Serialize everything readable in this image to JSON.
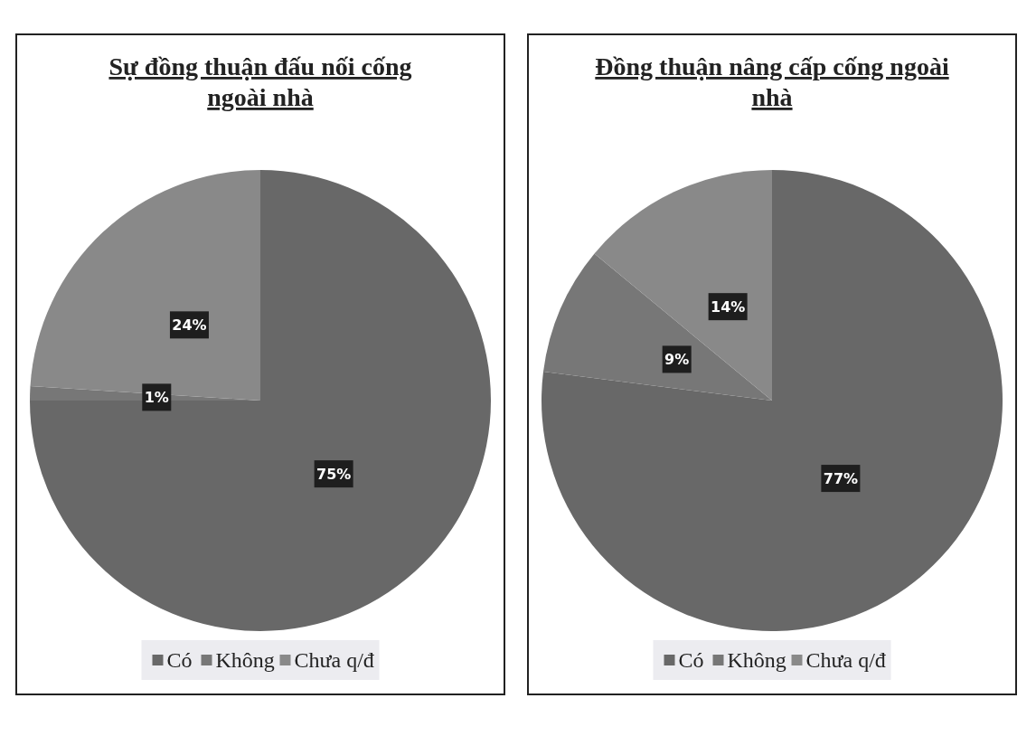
{
  "chart_data": [
    {
      "type": "pie",
      "title": "Sự đồng thuận đấu nối cống ngoài nhà",
      "categories": [
        "Có",
        "Không",
        "Chưa q/đ"
      ],
      "values": [
        75,
        1,
        24
      ],
      "value_labels": [
        "75%",
        "1%",
        "24%"
      ],
      "colors": [
        "#686868",
        "#777777",
        "#898989"
      ],
      "legend": "bottom"
    },
    {
      "type": "pie",
      "title": "Đồng thuận nâng cấp cống ngoài nhà",
      "categories": [
        "Có",
        "Không",
        "Chưa q/đ"
      ],
      "values": [
        77,
        9,
        14
      ],
      "value_labels": [
        "77%",
        "9%",
        "14%"
      ],
      "colors": [
        "#686868",
        "#777777",
        "#898989"
      ],
      "legend": "bottom"
    }
  ]
}
